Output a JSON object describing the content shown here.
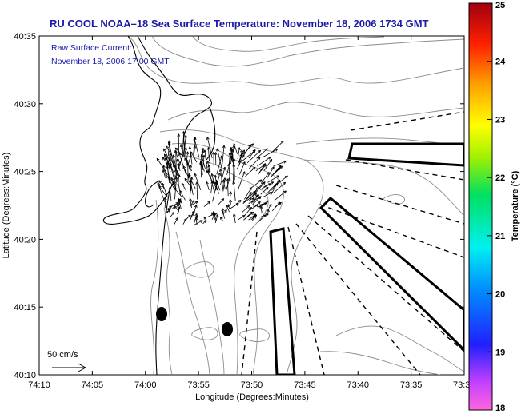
{
  "title": "RU COOL  NOAA–18  Sea Surface Temperature:  November 18, 2006 1734 GMT",
  "note_line1": "Raw Surface Current:",
  "note_line2": "November 18, 2006 17:00 GMT",
  "x_axis_label": "Longitude (Degrees:Minutes)",
  "y_axis_label": "Latitude (Degrees:Minutes)",
  "x_ticks": [
    "74:10",
    "74:05",
    "74:00",
    "73:55",
    "73:50",
    "73:45",
    "73:40",
    "73:35",
    "73:3"
  ],
  "y_ticks": [
    "40:35",
    "40:30",
    "40:25",
    "40:20",
    "40:15",
    "40:10"
  ],
  "colorbar": {
    "label": "Temperature (°C)",
    "ticks": [
      "25",
      "24",
      "23",
      "22",
      "21",
      "20",
      "19",
      "18"
    ],
    "min": 18,
    "max": 25
  },
  "scale_arrow_label": "50 cm/s"
}
